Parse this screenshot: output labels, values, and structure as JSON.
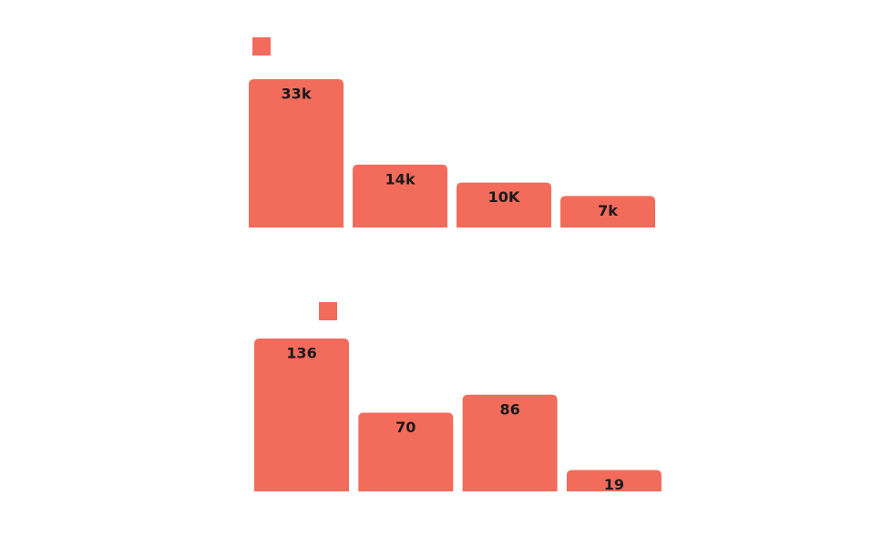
{
  "chart_data": [
    {
      "type": "bar",
      "color": "#f26b5b",
      "values": [
        33000,
        14000,
        10000,
        7000
      ],
      "value_labels": [
        "33k",
        "14k",
        "10K",
        "7k"
      ]
    },
    {
      "type": "bar",
      "color": "#f26b5b",
      "values": [
        136,
        70,
        86,
        19
      ]
    }
  ]
}
